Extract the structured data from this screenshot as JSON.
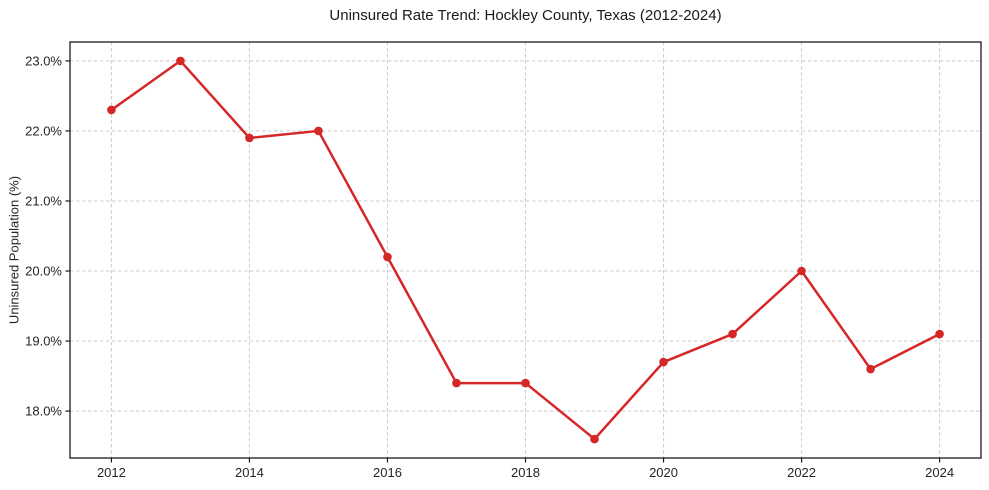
{
  "chart_data": {
    "type": "line",
    "title": "Uninsured Rate Trend: Hockley County, Texas (2012-2024)",
    "xlabel": "",
    "ylabel": "Uninsured Population (%)",
    "x": [
      2012,
      2013,
      2014,
      2015,
      2016,
      2017,
      2018,
      2019,
      2020,
      2021,
      2022,
      2023,
      2024
    ],
    "values": [
      22.3,
      23.0,
      21.9,
      22.0,
      20.2,
      18.4,
      18.4,
      17.6,
      18.7,
      19.1,
      20.0,
      18.6,
      19.1
    ],
    "xlim": [
      2011.4,
      2024.6
    ],
    "ylim": [
      17.33,
      23.27
    ],
    "x_ticks": [
      {
        "value": 2012,
        "label": "2012"
      },
      {
        "value": 2014,
        "label": "2014"
      },
      {
        "value": 2016,
        "label": "2016"
      },
      {
        "value": 2018,
        "label": "2018"
      },
      {
        "value": 2020,
        "label": "2020"
      },
      {
        "value": 2022,
        "label": "2022"
      },
      {
        "value": 2024,
        "label": "2024"
      }
    ],
    "y_ticks": [
      {
        "value": 18.0,
        "label": "18.0%"
      },
      {
        "value": 19.0,
        "label": "19.0%"
      },
      {
        "value": 20.0,
        "label": "20.0%"
      },
      {
        "value": 21.0,
        "label": "21.0%"
      },
      {
        "value": 22.0,
        "label": "22.0%"
      },
      {
        "value": 23.0,
        "label": "23.0%"
      }
    ],
    "grid": true,
    "grid_style": "dashed",
    "legend": "none",
    "marker": "circle",
    "colors": {
      "line": "#d62728",
      "grid": "#cccccc",
      "spine": "#1a1a1a",
      "text": "#262626",
      "background": "#ffffff"
    }
  }
}
